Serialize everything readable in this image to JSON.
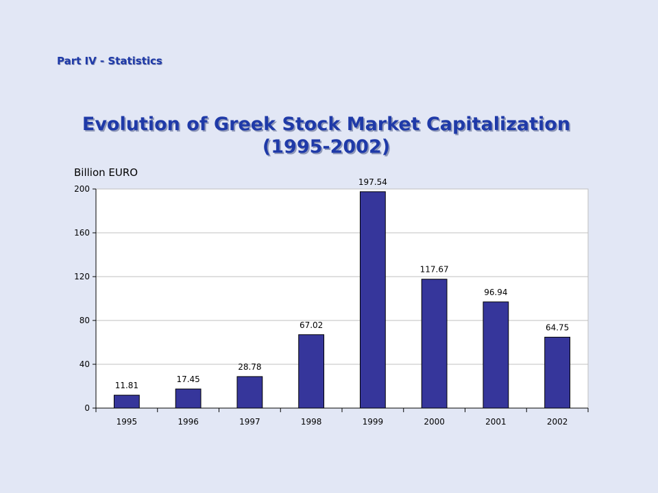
{
  "slide": {
    "section": "Part IV - Statistics",
    "title_line1": "Evolution of Greek Stock Market Capitalization",
    "title_line2": "(1995-2002)"
  },
  "chart_data": {
    "type": "bar",
    "title": "",
    "xlabel": "",
    "ylabel": "Billion EURO",
    "categories": [
      "1995",
      "1996",
      "1997",
      "1998",
      "1999",
      "2000",
      "2001",
      "2002"
    ],
    "values": [
      11.81,
      17.45,
      28.78,
      67.02,
      197.54,
      117.67,
      96.94,
      64.75
    ],
    "data_labels": [
      "11.81",
      "17.45",
      "28.78",
      "67.02",
      "197.54",
      "117.67",
      "96.94",
      "64.75"
    ],
    "ylim": [
      0,
      200
    ],
    "yticks": [
      0,
      40,
      80,
      120,
      160,
      200
    ],
    "grid": true,
    "legend": "none",
    "colors": {
      "bar_fill": "#36369b",
      "bar_stroke": "#000000",
      "gridline": "#bfbfbf",
      "axis": "#000000",
      "plot_background": "#ffffff"
    }
  }
}
